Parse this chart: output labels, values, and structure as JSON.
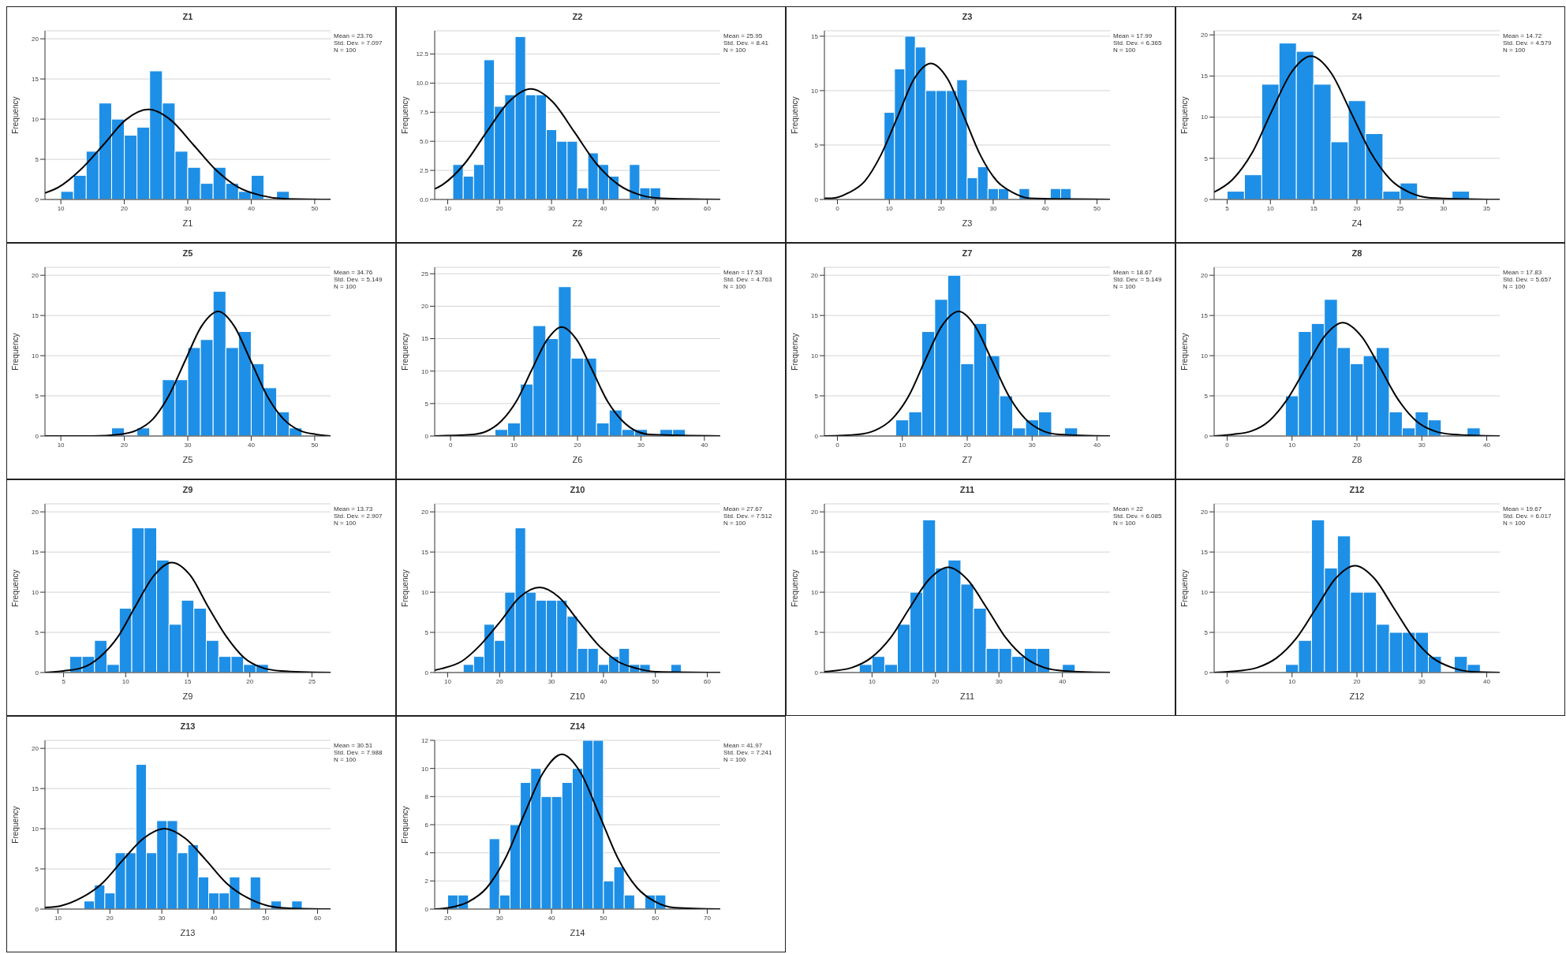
{
  "chart_data": [
    {
      "type": "histogram",
      "title": "Z1",
      "xlabel": "Z1",
      "ylabel": "Frequency",
      "color": "#1e8fe6",
      "grid": "y",
      "bins": [
        10,
        12,
        14,
        16,
        18,
        20,
        22,
        24,
        26,
        28,
        30,
        32,
        34,
        36,
        38,
        40,
        42,
        44,
        46
      ],
      "values": [
        1,
        3,
        6,
        12,
        10,
        8,
        9,
        16,
        12,
        6,
        4,
        2,
        4,
        2,
        1,
        3,
        0,
        1
      ],
      "xlim": [
        7.5,
        52.5
      ],
      "xticks": [
        10,
        20,
        30,
        40,
        50
      ],
      "ylim": [
        0,
        21
      ],
      "yticks": [
        0,
        5,
        10,
        15,
        20
      ],
      "annotations": [
        "Mean = 23.76",
        "Std. Dev. = 7.097",
        "N = 100"
      ],
      "series": [
        {
          "type": "line",
          "color": "#000000",
          "x": [
            7.5,
            9.6,
            13.1,
            16.7,
            20.2,
            23.8,
            27.3,
            30.9,
            34.4,
            38,
            41.5,
            45.1,
            52.5
          ],
          "values": [
            0.8,
            1.5,
            3.7,
            6.8,
            9.9,
            11.2,
            9.9,
            6.8,
            3.7,
            1.5,
            0.5,
            0.1,
            0
          ]
        }
      ]
    },
    {
      "type": "histogram",
      "title": "Z2",
      "xlabel": "Z2",
      "ylabel": "Frequency",
      "color": "#1e8fe6",
      "grid": "y",
      "bins": [
        11,
        13,
        15,
        17,
        19,
        21,
        23,
        25,
        27,
        29,
        31,
        33,
        35,
        37,
        39,
        41,
        43,
        45,
        47,
        49,
        51
      ],
      "values": [
        3,
        2,
        3,
        12,
        8,
        9,
        14,
        9,
        9,
        6,
        5,
        5,
        1,
        4,
        3,
        2,
        0,
        3,
        1,
        1
      ],
      "xlim": [
        7.5,
        62.5
      ],
      "xticks": [
        10,
        20,
        30,
        40,
        50,
        60
      ],
      "ylim": [
        0,
        14.5
      ],
      "yticks": [
        {
          "value": 0,
          "label": "0.0"
        },
        {
          "value": 2.5,
          "label": "2.5"
        },
        {
          "value": 5,
          "label": "5.0"
        },
        {
          "value": 7.5,
          "label": "7.5"
        },
        {
          "value": 10,
          "label": "10.0"
        },
        {
          "value": 12.5,
          "label": "12.5"
        }
      ],
      "annotations": [
        "Mean = 25.95",
        "Std. Dev. = 8.41",
        "N = 100"
      ],
      "series": [
        {
          "type": "line",
          "color": "#000000",
          "x": [
            7.5,
            9.1,
            13.3,
            17.5,
            21.8,
            26,
            30.2,
            34.4,
            38.6,
            42.8,
            47,
            51.2,
            62.5
          ],
          "values": [
            0.9,
            1.3,
            3.1,
            5.8,
            8.4,
            9.5,
            8.4,
            5.8,
            3.1,
            1.3,
            0.4,
            0.1,
            0
          ]
        }
      ]
    },
    {
      "type": "histogram",
      "title": "Z3",
      "xlabel": "Z3",
      "ylabel": "Frequency",
      "color": "#1e8fe6",
      "grid": "y",
      "bins": [
        9,
        11,
        13,
        15,
        17,
        19,
        21,
        23,
        25,
        27,
        29,
        31,
        33,
        35,
        37,
        39,
        41,
        43,
        45
      ],
      "values": [
        8,
        12,
        15,
        14,
        10,
        10,
        10,
        11,
        2,
        3,
        1,
        1,
        0,
        1,
        0,
        0,
        1,
        1
      ],
      "xlim": [
        -2.5,
        52.5
      ],
      "xticks": [
        0,
        10,
        20,
        30,
        40,
        50
      ],
      "ylim": [
        0,
        15.5
      ],
      "yticks": [
        0,
        5,
        10,
        15
      ],
      "annotations": [
        "Mean = 17.99",
        "Std. Dev. = 6.365",
        "N = 100"
      ],
      "series": [
        {
          "type": "line",
          "color": "#000000",
          "x": [
            -2.5,
            -1.1,
            2.1,
            5.3,
            8.4,
            11.6,
            14.8,
            18,
            21.2,
            24.4,
            27.5,
            30.7,
            33.9,
            37.1,
            52.5
          ],
          "values": [
            0.1,
            0.1,
            0.6,
            1.7,
            4.1,
            7.6,
            11.1,
            12.5,
            11.1,
            7.6,
            4.1,
            1.7,
            0.6,
            0.1,
            0
          ]
        }
      ]
    },
    {
      "type": "histogram",
      "title": "Z4",
      "xlabel": "Z4",
      "ylabel": "Frequency",
      "color": "#1e8fe6",
      "grid": "y",
      "bins": [
        5,
        7,
        9,
        11,
        13,
        15,
        17,
        19,
        21,
        23,
        25,
        27,
        29,
        31,
        33
      ],
      "values": [
        1,
        3,
        14,
        19,
        18,
        14,
        7,
        12,
        8,
        1,
        2,
        0,
        0,
        1
      ],
      "xlim": [
        3.5,
        36.5
      ],
      "xticks": [
        5,
        10,
        15,
        20,
        25,
        30,
        35
      ],
      "ylim": [
        0,
        20.5
      ],
      "yticks": [
        0,
        5,
        10,
        15,
        20
      ],
      "annotations": [
        "Mean = 14.72",
        "Std. Dev. = 4.579",
        "N = 100"
      ],
      "series": [
        {
          "type": "line",
          "color": "#000000",
          "x": [
            3.5,
            5.6,
            7.9,
            10.1,
            12.4,
            14.7,
            17,
            19.3,
            21.6,
            23.9,
            26.2,
            28.5,
            36.5
          ],
          "values": [
            0.9,
            2.4,
            5.7,
            10.6,
            15.4,
            17.4,
            15.4,
            10.6,
            5.7,
            2.4,
            0.8,
            0.2,
            0
          ]
        }
      ]
    },
    {
      "type": "histogram",
      "title": "Z5",
      "xlabel": "Z5",
      "ylabel": "Frequency",
      "color": "#1e8fe6",
      "grid": "y",
      "bins": [
        18,
        20,
        22,
        24,
        26,
        28,
        30,
        32,
        34,
        36,
        38,
        40,
        42,
        44,
        46,
        48
      ],
      "values": [
        1,
        0,
        1,
        0,
        7,
        7,
        11,
        12,
        18,
        11,
        13,
        9,
        6,
        3,
        1
      ],
      "xlim": [
        7.5,
        52.5
      ],
      "xticks": [
        10,
        20,
        30,
        40,
        50
      ],
      "ylim": [
        0,
        21
      ],
      "yticks": [
        0,
        5,
        10,
        15,
        20
      ],
      "annotations": [
        "Mean = 34.76",
        "Std. Dev. = 5.149",
        "N = 100"
      ],
      "series": [
        {
          "type": "line",
          "color": "#000000",
          "x": [
            7.5,
            15,
            19.3,
            21.9,
            24.5,
            27,
            29.6,
            32.2,
            34.8,
            37.3,
            39.9,
            42.5,
            45.1,
            47.6,
            50.2,
            52.5
          ],
          "values": [
            0,
            0,
            0.2,
            0.7,
            2.1,
            5,
            9.4,
            13.7,
            15.5,
            13.7,
            9.4,
            5,
            2.1,
            0.7,
            0.2,
            0
          ]
        }
      ]
    },
    {
      "type": "histogram",
      "title": "Z6",
      "xlabel": "Z6",
      "ylabel": "Frequency",
      "color": "#1e8fe6",
      "grid": "y",
      "bins": [
        7,
        9,
        11,
        13,
        15,
        17,
        19,
        21,
        23,
        25,
        27,
        29,
        31,
        33,
        35,
        37
      ],
      "values": [
        1,
        2,
        8,
        17,
        15,
        23,
        12,
        12,
        2,
        4,
        1,
        1,
        0,
        1,
        1
      ],
      "xlim": [
        -2.5,
        42.5
      ],
      "xticks": [
        0,
        10,
        20,
        30,
        40
      ],
      "ylim": [
        0,
        26
      ],
      "yticks": [
        0,
        5,
        10,
        15,
        20,
        25
      ],
      "annotations": [
        "Mean = 17.53",
        "Std. Dev. = 4.763",
        "N = 100"
      ],
      "series": [
        {
          "type": "line",
          "color": "#000000",
          "x": [
            -2.5,
            3.2,
            5.6,
            8,
            10.4,
            12.8,
            15.2,
            17.5,
            19.9,
            22.3,
            24.7,
            27.1,
            29.4,
            31.8,
            42.5
          ],
          "values": [
            0,
            0.2,
            0.7,
            2.3,
            5.4,
            10.2,
            14.8,
            16.8,
            14.8,
            10.2,
            5.4,
            2.3,
            0.7,
            0.2,
            0
          ]
        }
      ]
    },
    {
      "type": "histogram",
      "title": "Z7",
      "xlabel": "Z7",
      "ylabel": "Frequency",
      "color": "#1e8fe6",
      "grid": "y",
      "bins": [
        9,
        11,
        13,
        15,
        17,
        19,
        21,
        23,
        25,
        27,
        29,
        31,
        33,
        35,
        37
      ],
      "values": [
        2,
        3,
        13,
        17,
        20,
        9,
        14,
        10,
        5,
        1,
        2,
        3,
        0,
        1
      ],
      "xlim": [
        -2,
        42
      ],
      "xticks": [
        0,
        10,
        20,
        30,
        40
      ],
      "ylim": [
        0,
        21
      ],
      "yticks": [
        0,
        5,
        10,
        15,
        20
      ],
      "annotations": [
        "Mean = 18.67",
        "Std. Dev. = 5.149",
        "N = 100"
      ],
      "series": [
        {
          "type": "line",
          "color": "#000000",
          "x": [
            -2,
            3.2,
            5.8,
            8.4,
            11,
            13.5,
            16.1,
            18.7,
            21.2,
            23.8,
            26.4,
            29,
            31.5,
            34.1,
            42
          ],
          "values": [
            0,
            0.2,
            0.7,
            2.1,
            5,
            9.4,
            13.7,
            15.5,
            13.7,
            9.4,
            5,
            2.1,
            0.7,
            0.2,
            0
          ]
        }
      ]
    },
    {
      "type": "histogram",
      "title": "Z8",
      "xlabel": "Z8",
      "ylabel": "Frequency",
      "color": "#1e8fe6",
      "grid": "y",
      "bins": [
        9,
        11,
        13,
        15,
        17,
        19,
        21,
        23,
        25,
        27,
        29,
        31,
        33,
        35,
        37,
        39
      ],
      "values": [
        5,
        13,
        14,
        17,
        11,
        9,
        10,
        11,
        3,
        1,
        3,
        2,
        0,
        0,
        1
      ],
      "xlim": [
        -2,
        42
      ],
      "xticks": [
        0,
        10,
        20,
        30,
        40
      ],
      "ylim": [
        0,
        21
      ],
      "yticks": [
        0,
        5,
        10,
        15,
        20
      ],
      "annotations": [
        "Mean = 17.83",
        "Std. Dev. = 5.657",
        "N = 100"
      ],
      "series": [
        {
          "type": "line",
          "color": "#000000",
          "x": [
            -2,
            0.9,
            3.7,
            6.5,
            9.3,
            12.2,
            15,
            17.8,
            20.7,
            23.5,
            26.3,
            29.1,
            32,
            34.8,
            42
          ],
          "values": [
            0,
            0.2,
            0.6,
            1.9,
            4.6,
            8.6,
            12.4,
            14.1,
            12.4,
            8.6,
            4.6,
            1.9,
            0.6,
            0.2,
            0
          ]
        }
      ]
    },
    {
      "type": "histogram",
      "title": "Z9",
      "xlabel": "Z9",
      "ylabel": "Frequency",
      "color": "#1e8fe6",
      "grid": "y",
      "bins": [
        5.5,
        6.5,
        7.5,
        8.5,
        9.5,
        10.5,
        11.5,
        12.5,
        13.5,
        14.5,
        15.5,
        16.5,
        17.5,
        18.5,
        19.5,
        20.5,
        21.5
      ],
      "values": [
        2,
        2,
        4,
        1,
        8,
        18,
        18,
        14,
        6,
        9,
        8,
        4,
        2,
        2,
        1,
        1
      ],
      "xlim": [
        3.5,
        26.5
      ],
      "xticks": [
        5,
        10,
        15,
        20,
        25
      ],
      "ylim": [
        0,
        21
      ],
      "yticks": [
        0,
        5,
        10,
        15,
        20
      ],
      "annotations": [
        "Mean = 13.73",
        "Std. Dev. = 2.907",
        "N = 100"
      ],
      "series": [
        {
          "type": "line",
          "color": "#000000",
          "x": [
            3.5,
            5,
            6.5,
            7.9,
            9.4,
            10.8,
            12.3,
            13.7,
            15.2,
            16.6,
            18.1,
            19.5,
            21,
            22.5,
            26.5
          ],
          "values": [
            0,
            0.2,
            0.6,
            1.9,
            4.5,
            8.3,
            12.1,
            13.7,
            12.1,
            8.3,
            4.5,
            1.9,
            0.6,
            0.2,
            0
          ]
        }
      ]
    },
    {
      "type": "histogram",
      "title": "Z10",
      "xlabel": "Z10",
      "ylabel": "Frequency",
      "color": "#1e8fe6",
      "grid": "y",
      "bins": [
        13,
        15,
        17,
        19,
        21,
        23,
        25,
        27,
        29,
        31,
        33,
        35,
        37,
        39,
        41,
        43,
        45,
        47,
        49,
        51,
        53,
        55
      ],
      "values": [
        1,
        2,
        6,
        4,
        10,
        18,
        10,
        9,
        9,
        9,
        7,
        3,
        3,
        1,
        2,
        3,
        1,
        1,
        0,
        0,
        1
      ],
      "xlim": [
        7.5,
        62.5
      ],
      "xticks": [
        10,
        20,
        30,
        40,
        50,
        60
      ],
      "ylim": [
        0,
        21
      ],
      "yticks": [
        0,
        5,
        10,
        15,
        20
      ],
      "annotations": [
        "Mean = 27.67",
        "Std. Dev. = 7.512",
        "N = 100"
      ],
      "series": [
        {
          "type": "line",
          "color": "#000000",
          "x": [
            7.5,
            8.9,
            12.7,
            16.4,
            20.2,
            23.9,
            27.7,
            31.4,
            35.2,
            38.9,
            42.7,
            46.5,
            50.2,
            62.5
          ],
          "values": [
            0.3,
            0.5,
            1.4,
            3.5,
            6.4,
            9.4,
            10.6,
            9.4,
            6.4,
            3.5,
            1.4,
            0.5,
            0.1,
            0
          ]
        }
      ]
    },
    {
      "type": "histogram",
      "title": "Z11",
      "xlabel": "Z11",
      "ylabel": "Frequency",
      "color": "#1e8fe6",
      "grid": "y",
      "bins": [
        8,
        10,
        12,
        14,
        16,
        18,
        20,
        22,
        24,
        26,
        28,
        30,
        32,
        34,
        36,
        38,
        40,
        42
      ],
      "values": [
        1,
        2,
        1,
        6,
        10,
        19,
        13,
        14,
        11,
        8,
        3,
        3,
        2,
        3,
        3,
        0,
        1
      ],
      "xlim": [
        2.5,
        47.5
      ],
      "xticks": [
        10,
        20,
        30,
        40
      ],
      "ylim": [
        0,
        21
      ],
      "yticks": [
        0,
        5,
        10,
        15,
        20
      ],
      "annotations": [
        "Mean = 22",
        "Std. Dev. = 6.085",
        "N = 100"
      ],
      "series": [
        {
          "type": "line",
          "color": "#000000",
          "x": [
            2.5,
            3.8,
            6.8,
            9.8,
            12.9,
            15.9,
            19,
            22,
            25,
            28.1,
            31.1,
            34.2,
            37.2,
            40.3,
            47.5
          ],
          "values": [
            0.1,
            0.2,
            0.6,
            1.8,
            4.3,
            8,
            11.6,
            13.1,
            11.6,
            8,
            4.3,
            1.8,
            0.6,
            0.2,
            0
          ]
        }
      ]
    },
    {
      "type": "histogram",
      "title": "Z12",
      "xlabel": "Z12",
      "ylabel": "Frequency",
      "color": "#1e8fe6",
      "grid": "y",
      "bins": [
        9,
        11,
        13,
        15,
        17,
        19,
        21,
        23,
        25,
        27,
        29,
        31,
        33,
        35,
        37,
        39
      ],
      "values": [
        1,
        4,
        19,
        13,
        17,
        10,
        10,
        6,
        5,
        5,
        5,
        2,
        0,
        2,
        1
      ],
      "xlim": [
        -2,
        42
      ],
      "xticks": [
        0,
        10,
        20,
        30,
        40
      ],
      "ylim": [
        0,
        21
      ],
      "yticks": [
        0,
        5,
        10,
        15,
        20
      ],
      "annotations": [
        "Mean = 19.67",
        "Std. Dev. = 6.017",
        "N = 100"
      ],
      "series": [
        {
          "type": "line",
          "color": "#000000",
          "x": [
            -2,
            1.6,
            4.6,
            7.6,
            10.7,
            13.7,
            16.7,
            19.7,
            22.7,
            25.7,
            28.7,
            31.7,
            34.7,
            37.7,
            42
          ],
          "values": [
            0,
            0.2,
            0.6,
            1.8,
            4.3,
            8,
            11.7,
            13.3,
            11.7,
            8,
            4.3,
            1.8,
            0.6,
            0.1,
            0
          ]
        }
      ]
    },
    {
      "type": "histogram",
      "title": "Z13",
      "xlabel": "Z13",
      "ylabel": "Frequency",
      "color": "#1e8fe6",
      "grid": "y",
      "bins": [
        15,
        17,
        19,
        21,
        23,
        25,
        27,
        29,
        31,
        33,
        35,
        37,
        39,
        41,
        43,
        45,
        47,
        49,
        51,
        53,
        55,
        57
      ],
      "values": [
        1,
        3,
        2,
        7,
        7,
        18,
        7,
        11,
        11,
        7,
        8,
        4,
        2,
        2,
        4,
        0,
        4,
        0,
        1,
        0,
        1
      ],
      "xlim": [
        7.5,
        62.5
      ],
      "xticks": [
        10,
        20,
        30,
        40,
        50,
        60
      ],
      "ylim": [
        0,
        21
      ],
      "yticks": [
        0,
        5,
        10,
        15,
        20
      ],
      "annotations": [
        "Mean = 30.51",
        "Std. Dev. = 7.988",
        "N = 100"
      ],
      "series": [
        {
          "type": "line",
          "color": "#000000",
          "x": [
            7.5,
            10.5,
            14.5,
            18.5,
            22.5,
            26.5,
            30.5,
            34.5,
            38.5,
            42.5,
            46.5,
            50.5,
            54.5,
            62.5
          ],
          "values": [
            0.2,
            0.4,
            1.4,
            3.2,
            6.1,
            8.8,
            10,
            8.8,
            6.1,
            3.2,
            1.4,
            0.4,
            0.1,
            0
          ]
        }
      ]
    },
    {
      "type": "histogram",
      "title": "Z14",
      "xlabel": "Z14",
      "ylabel": "Frequency",
      "color": "#1e8fe6",
      "grid": "y",
      "bins": [
        20,
        22,
        24,
        26,
        28,
        30,
        32,
        34,
        36,
        38,
        40,
        42,
        44,
        46,
        48,
        50,
        52,
        54,
        56,
        58,
        60,
        62
      ],
      "values": [
        1,
        1,
        0,
        0,
        5,
        1,
        6,
        9,
        10,
        8,
        8,
        9,
        10,
        12,
        12,
        2,
        3,
        1,
        0,
        1,
        1
      ],
      "xlim": [
        17.5,
        72.5
      ],
      "xticks": [
        20,
        30,
        40,
        50,
        60,
        70
      ],
      "ylim": [
        0,
        12
      ],
      "yticks": [
        0,
        2,
        4,
        6,
        8,
        10,
        12
      ],
      "annotations": [
        "Mean = 41.97",
        "Std. Dev. = 7.241",
        "N = 100"
      ],
      "series": [
        {
          "type": "line",
          "color": "#000000",
          "x": [
            17.5,
            20.3,
            23.9,
            27.5,
            31.1,
            34.7,
            38.4,
            42,
            45.6,
            49.2,
            52.8,
            56.5,
            60.1,
            63.7,
            72.5
          ],
          "values": [
            0,
            0.1,
            0.5,
            1.5,
            3.6,
            6.7,
            9.7,
            11,
            9.7,
            6.7,
            3.6,
            1.5,
            0.5,
            0.1,
            0
          ]
        }
      ]
    }
  ]
}
